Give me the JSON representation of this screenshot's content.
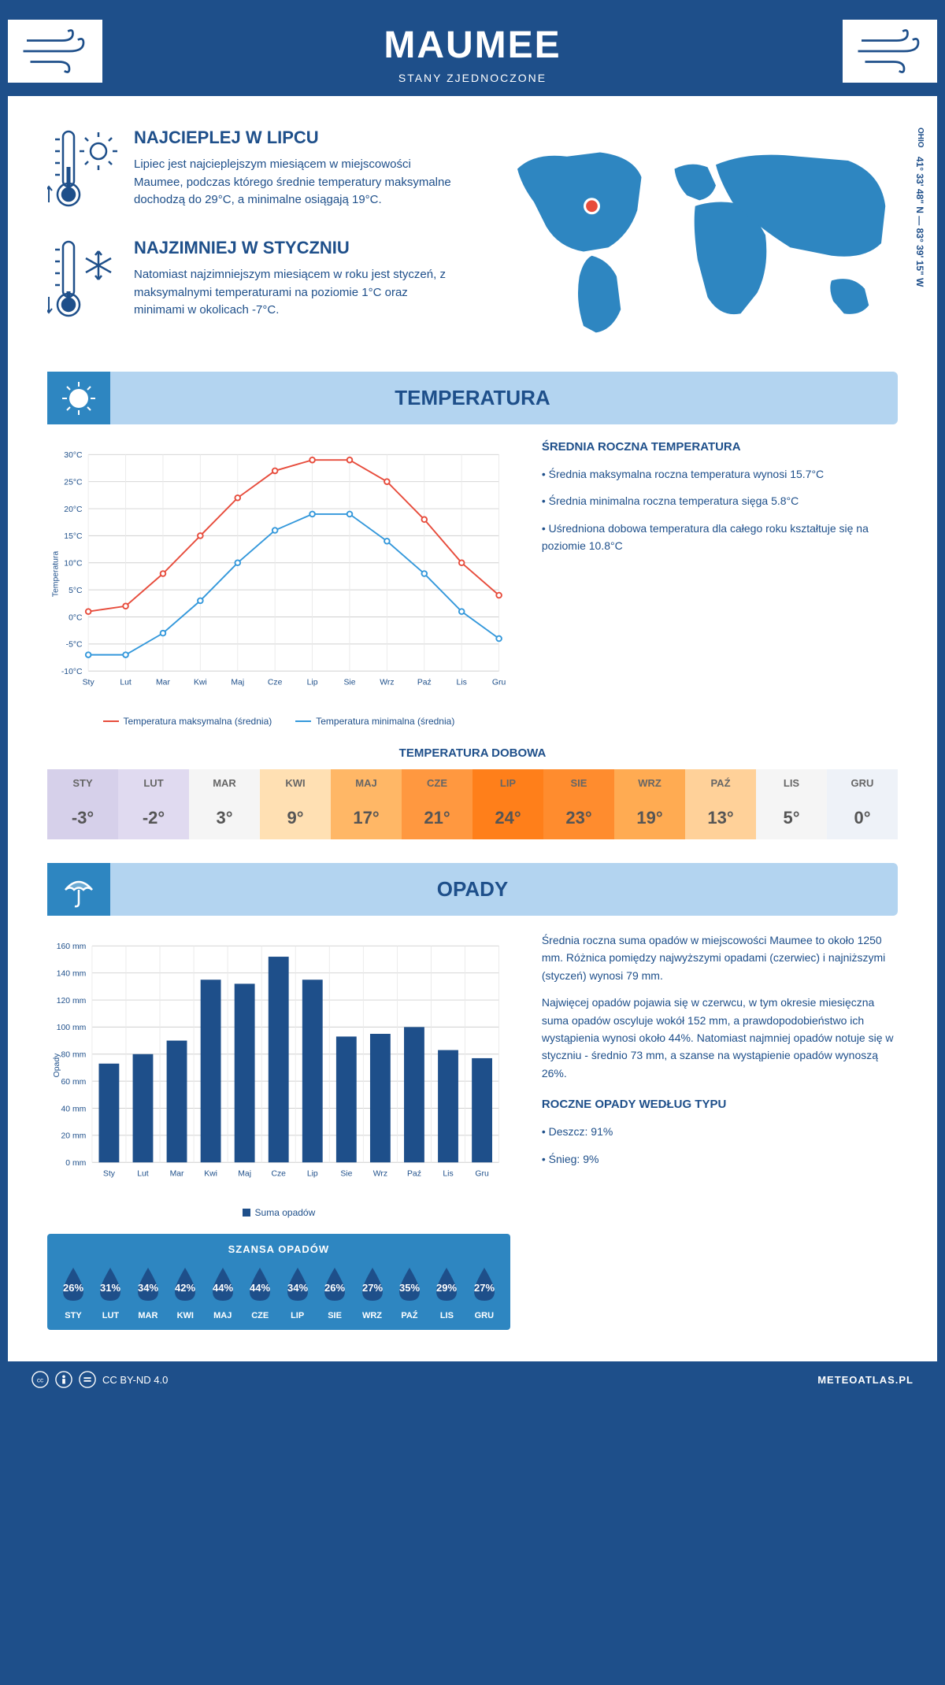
{
  "header": {
    "city": "MAUMEE",
    "country": "STANY ZJEDNOCZONE"
  },
  "location": {
    "state": "OHIO",
    "coords": "41° 33' 48\" N — 83° 39' 15\" W"
  },
  "warmest": {
    "title": "NAJCIEPLEJ W LIPCU",
    "text": "Lipiec jest najcieplejszym miesiącem w miejscowości Maumee, podczas którego średnie temperatury maksymalne dochodzą do 29°C, a minimalne osiągają 19°C."
  },
  "coldest": {
    "title": "NAJZIMNIEJ W STYCZNIU",
    "text": "Natomiast najzimniejszym miesiącem w roku jest styczeń, z maksymalnymi temperaturami na poziomie 1°C oraz minimami w okolicach -7°C."
  },
  "sections": {
    "temperature": "TEMPERATURA",
    "precip": "OPADY"
  },
  "temp_chart": {
    "type": "line",
    "months": [
      "Sty",
      "Lut",
      "Mar",
      "Kwi",
      "Maj",
      "Cze",
      "Lip",
      "Sie",
      "Wrz",
      "Paź",
      "Lis",
      "Gru"
    ],
    "max_series": [
      1,
      2,
      8,
      15,
      22,
      27,
      29,
      29,
      25,
      18,
      10,
      4
    ],
    "min_series": [
      -7,
      -7,
      -3,
      3,
      10,
      16,
      19,
      19,
      14,
      8,
      1,
      -4
    ],
    "colors": {
      "max": "#e74c3c",
      "min": "#3498db",
      "grid": "#d0d0d0",
      "text": "#1e4f8a"
    },
    "ylabel": "Temperatura",
    "ylim": [
      -10,
      30
    ],
    "ystep": 5,
    "legend": {
      "max": "Temperatura maksymalna (średnia)",
      "min": "Temperatura minimalna (średnia)"
    }
  },
  "temp_info": {
    "title": "ŚREDNIA ROCZNA TEMPERATURA",
    "bullets": [
      "• Średnia maksymalna roczna temperatura wynosi 15.7°C",
      "• Średnia minimalna roczna temperatura sięga 5.8°C",
      "• Uśredniona dobowa temperatura dla całego roku kształtuje się na poziomie 10.8°C"
    ]
  },
  "daily": {
    "title": "TEMPERATURA DOBOWA",
    "months": [
      "STY",
      "LUT",
      "MAR",
      "KWI",
      "MAJ",
      "CZE",
      "LIP",
      "SIE",
      "WRZ",
      "PAŹ",
      "LIS",
      "GRU"
    ],
    "values": [
      "-3°",
      "-2°",
      "3°",
      "9°",
      "17°",
      "21°",
      "24°",
      "23°",
      "19°",
      "13°",
      "5°",
      "0°"
    ],
    "cell_bg": [
      "#d6d0ea",
      "#e0daf0",
      "#f5f5f5",
      "#ffe0b3",
      "#ffb766",
      "#ff9840",
      "#ff7f1a",
      "#ff8c2e",
      "#ffab52",
      "#ffd199",
      "#f5f5f5",
      "#eef2f8"
    ]
  },
  "precip_chart": {
    "type": "bar",
    "months": [
      "Sty",
      "Lut",
      "Mar",
      "Kwi",
      "Maj",
      "Cze",
      "Lip",
      "Sie",
      "Wrz",
      "Paź",
      "Lis",
      "Gru"
    ],
    "values": [
      73,
      80,
      90,
      135,
      132,
      152,
      135,
      93,
      95,
      100,
      83,
      77
    ],
    "bar_color": "#1e4f8a",
    "grid": "#d0d0d0",
    "ylabel": "Opady",
    "ylim": [
      0,
      160
    ],
    "ystep": 20,
    "legend": "Suma opadów"
  },
  "precip_info": {
    "p1": "Średnia roczna suma opadów w miejscowości Maumee to około 1250 mm. Różnica pomiędzy najwyższymi opadami (czerwiec) i najniższymi (styczeń) wynosi 79 mm.",
    "p2": "Najwięcej opadów pojawia się w czerwcu, w tym okresie miesięczna suma opadów oscyluje wokół 152 mm, a prawdopodobieństwo ich wystąpienia wynosi około 44%. Natomiast najmniej opadów notuje się w styczniu - średnio 73 mm, a szanse na wystąpienie opadów wynoszą 26%.",
    "type_title": "ROCZNE OPADY WEDŁUG TYPU",
    "type_rain": "• Deszcz: 91%",
    "type_snow": "• Śnieg: 9%"
  },
  "chance": {
    "title": "SZANSA OPADÓW",
    "months": [
      "STY",
      "LUT",
      "MAR",
      "KWI",
      "MAJ",
      "CZE",
      "LIP",
      "SIE",
      "WRZ",
      "PAŹ",
      "LIS",
      "GRU"
    ],
    "values": [
      "26%",
      "31%",
      "34%",
      "42%",
      "44%",
      "44%",
      "34%",
      "26%",
      "27%",
      "35%",
      "29%",
      "27%"
    ],
    "drop_color": "#1e4f8a"
  },
  "footer": {
    "license": "CC BY-ND 4.0",
    "site": "METEOATLAS.PL"
  }
}
